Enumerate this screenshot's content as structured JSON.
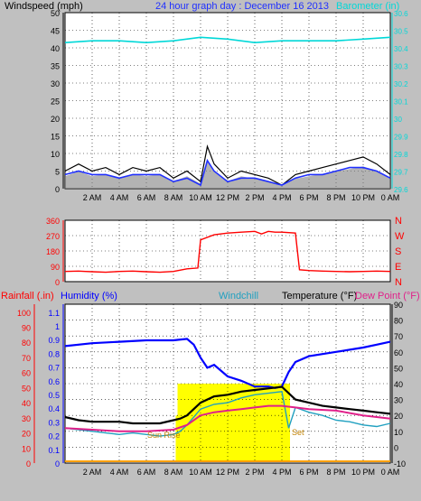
{
  "colors": {
    "background": "#c0c0c0",
    "plot_bg": "#ffffff",
    "windspeed": "#000000",
    "wind_avg": "#2030ff",
    "wind_gust_fill": "#808080",
    "barometer": "#00d8d8",
    "wind_dir": "#ff0000",
    "humidity": "#0000ff",
    "temperature": "#000000",
    "windchill": "#20a0c0",
    "dew_point": "#e0208a",
    "rainfall": "#ff0000",
    "sun": "#ffff00",
    "baseline": "#ffa000",
    "grid": "#000000"
  },
  "chart_data": [
    {
      "type": "line",
      "title": "24 hour graph day : December 16 2013",
      "ylabel": "Windspeed (mph)",
      "y2label": "Barometer (in)",
      "ylim": [
        0,
        50
      ],
      "y2lim": [
        29.6,
        30.6
      ],
      "yticks": [
        "0",
        "5",
        "10",
        "15",
        "20",
        "25",
        "30",
        "35",
        "40",
        "45",
        "50"
      ],
      "y2ticks": [
        "29.6",
        "29.7",
        "29.8",
        "29.9",
        "30",
        "30.1",
        "30.2",
        "30.3",
        "30.4",
        "30.5",
        "30.6"
      ],
      "xticks": [
        "2 AM",
        "4 AM",
        "6 AM",
        "8 AM",
        "10 AM",
        "12 PM",
        "2 PM",
        "4 PM",
        "6 PM",
        "8 PM",
        "10 PM",
        "0 AM"
      ],
      "grid": true,
      "series": [
        {
          "key": "windspeed",
          "x": [
            0,
            1,
            2,
            3,
            4,
            5,
            6,
            7,
            8,
            9,
            10,
            10.5,
            11,
            12,
            13,
            14,
            15,
            16,
            17,
            18,
            19,
            20,
            21,
            22,
            23,
            24
          ],
          "y": [
            5,
            7,
            5,
            6,
            4,
            6,
            5,
            6,
            3,
            5,
            2,
            12,
            7,
            3,
            5,
            4,
            3,
            1,
            4,
            5,
            6,
            7,
            8,
            9,
            7,
            4
          ]
        },
        {
          "key": "wind_avg",
          "x": [
            0,
            1,
            2,
            3,
            4,
            5,
            6,
            7,
            8,
            9,
            10,
            10.5,
            11,
            12,
            13,
            14,
            15,
            16,
            17,
            18,
            19,
            20,
            21,
            22,
            23,
            24
          ],
          "y": [
            4,
            5,
            4,
            4,
            3,
            4,
            4,
            4,
            2,
            3,
            1,
            8,
            5,
            2,
            3,
            3,
            2,
            1,
            3,
            4,
            4,
            5,
            6,
            6,
            5,
            3
          ]
        },
        {
          "key": "barometer",
          "x": [
            0,
            2,
            4,
            6,
            8,
            10,
            12,
            14,
            16,
            18,
            20,
            22,
            24
          ],
          "y": [
            30.43,
            30.44,
            30.44,
            30.43,
            30.44,
            30.46,
            30.45,
            30.43,
            30.44,
            30.44,
            30.44,
            30.45,
            30.46
          ]
        }
      ]
    },
    {
      "type": "line",
      "ylabel_ticks": [
        "0",
        "90",
        "180",
        "270",
        "360"
      ],
      "y2ticks": [
        "N",
        "E",
        "S",
        "W",
        "N"
      ],
      "ylim": [
        0,
        360
      ],
      "grid": true,
      "series": [
        {
          "key": "wind_dir",
          "x": [
            0,
            1,
            1.5,
            2,
            3,
            4,
            5,
            6,
            7,
            8,
            9,
            9.8,
            10,
            11,
            12,
            13,
            14,
            14.5,
            15,
            15.5,
            16,
            17,
            17.3,
            18,
            19,
            20,
            21,
            22,
            23,
            24
          ],
          "y": [
            60,
            62,
            60,
            58,
            55,
            60,
            62,
            58,
            55,
            60,
            75,
            80,
            245,
            275,
            285,
            290,
            295,
            280,
            295,
            290,
            290,
            285,
            70,
            65,
            62,
            60,
            58,
            60,
            62,
            60
          ]
        }
      ]
    },
    {
      "type": "line",
      "y_rain_ticks": [
        "0",
        "10",
        "20",
        "30",
        "40",
        "50",
        "60",
        "70",
        "80",
        "90",
        "100"
      ],
      "y_hum_ticks": [
        "0",
        "0.1",
        "0.2",
        "0.3",
        "0.4",
        "0.5",
        "0.6",
        "0.7",
        "0.8",
        "0.9",
        "1",
        "1.1"
      ],
      "y_temp_ticks": [
        "-10",
        "0",
        "10",
        "20",
        "30",
        "40",
        "50",
        "60",
        "70",
        "80",
        "90"
      ],
      "labels": {
        "rainfall": "Rainfall (.in)",
        "humidity": "Humidity (%)",
        "windchill": "Windchill",
        "temperature": "Temperature (°F)",
        "dew_point": "Dew Point (°F)"
      },
      "annotations": {
        "sunrise": "Sun Rise",
        "sunset": "Set"
      },
      "ylim_temp": [
        -10,
        90
      ],
      "grid": true,
      "series": [
        {
          "key": "humidity",
          "x": [
            0,
            2,
            4,
            6,
            8,
            9,
            9.5,
            10,
            10.5,
            11,
            12,
            13,
            14,
            15,
            15.5,
            16,
            16.5,
            17,
            18,
            20,
            22,
            23,
            24
          ],
          "y": [
            81,
            83,
            84,
            85,
            85,
            86,
            82,
            73,
            66,
            68,
            60,
            57,
            53,
            53,
            52,
            53,
            63,
            70,
            74,
            77,
            80,
            82,
            84
          ]
        },
        {
          "key": "temperature",
          "x": [
            0,
            1,
            2,
            3,
            4,
            5,
            6,
            7,
            8,
            8.5,
            9,
            10,
            11,
            12,
            13,
            14,
            15,
            16,
            17,
            18,
            19,
            20,
            21,
            22,
            23,
            24
          ],
          "y": [
            19,
            17,
            16,
            16,
            16,
            15,
            15,
            15,
            17,
            18,
            20,
            28,
            32,
            33,
            35,
            36,
            37,
            38,
            30,
            28,
            26,
            25,
            24,
            23,
            22,
            21
          ]
        },
        {
          "key": "windchill",
          "x": [
            0,
            1,
            2,
            3,
            4,
            5,
            6,
            7,
            8,
            8.5,
            9,
            10,
            11,
            12,
            13,
            14,
            15,
            16,
            16.5,
            17,
            18,
            19,
            20,
            21,
            22,
            23,
            24
          ],
          "y": [
            12,
            11,
            10,
            9,
            8,
            9,
            8,
            7,
            8,
            10,
            14,
            24,
            27,
            28,
            31,
            33,
            34,
            35,
            12,
            25,
            22,
            20,
            17,
            16,
            14,
            13,
            15
          ]
        },
        {
          "key": "dew_point",
          "x": [
            0,
            2,
            4,
            6,
            8,
            9,
            10,
            11,
            12,
            13,
            14,
            15,
            16,
            17,
            18,
            20,
            22,
            24
          ],
          "y": [
            12,
            11,
            10,
            10,
            11,
            14,
            20,
            22,
            23,
            24,
            25,
            26,
            26,
            25,
            24,
            23,
            20,
            18
          ]
        },
        {
          "key": "rainfall",
          "x": [
            0,
            24
          ],
          "y": [
            0,
            0
          ]
        }
      ],
      "sun_window": [
        8.3,
        16.6
      ]
    }
  ]
}
